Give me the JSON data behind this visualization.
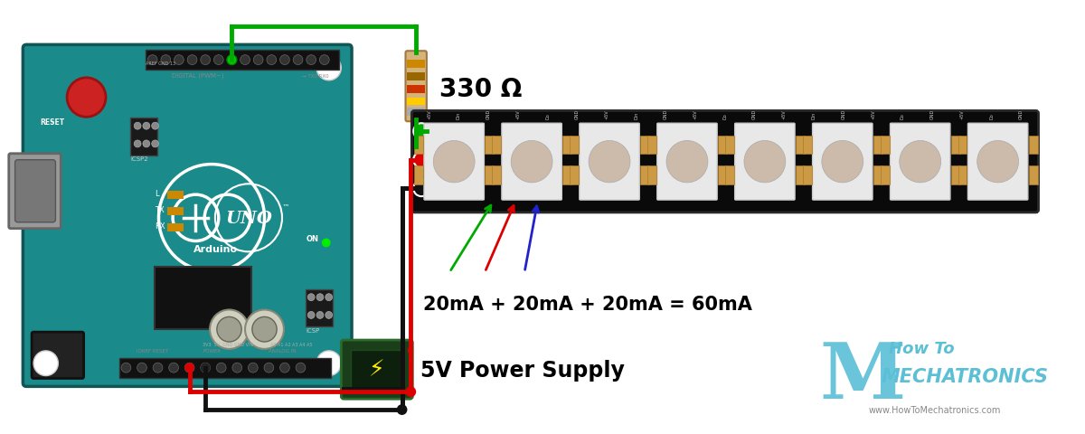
{
  "bg_color": "#ffffff",
  "resistor_label": "330 Ω",
  "resistor_label_fontsize": 20,
  "resistor_label_color": "#000000",
  "current_label": "20mA + 20mA + 20mA = 60mA",
  "current_label_fontsize": 15,
  "current_label_color": "#000000",
  "power_label": "5V Power Supply",
  "power_label_fontsize": 17,
  "power_label_color": "#000000",
  "logo_text1": "How To",
  "logo_text2": "MECHATRONICS",
  "logo_text3": "www.HowToMechatronics.com",
  "logo_color": "#5bbfd6",
  "wire_green": "#00aa00",
  "wire_red": "#dd0000",
  "wire_black": "#111111",
  "wire_blue": "#2222cc",
  "figsize": [
    12.0,
    4.81
  ],
  "dpi": 100
}
